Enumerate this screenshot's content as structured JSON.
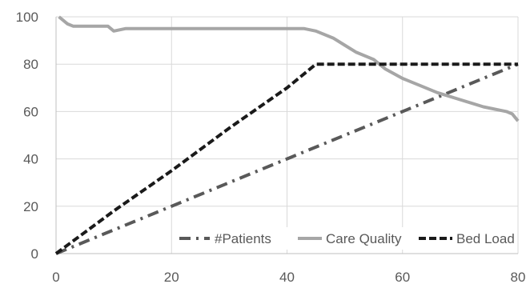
{
  "chart_data": {
    "type": "line",
    "title": "",
    "xlabel": "",
    "ylabel": "",
    "xlim": [
      0,
      80
    ],
    "ylim": [
      0,
      100
    ],
    "x_ticks": [
      0,
      20,
      40,
      60,
      80
    ],
    "y_ticks": [
      0,
      20,
      40,
      60,
      80,
      100
    ],
    "grid": "horizontal and vertical",
    "legend_position": "bottom-right, inside plot",
    "series": [
      {
        "name": "#Patients",
        "style": "dash-dot",
        "color": "#595959",
        "x": [
          0,
          10,
          20,
          30,
          40,
          50,
          60,
          70,
          80
        ],
        "y": [
          0,
          10,
          20,
          30,
          40,
          50,
          60,
          70,
          80
        ]
      },
      {
        "name": "Care Quality",
        "style": "solid",
        "color": "#a6a6a6",
        "x": [
          0.5,
          2,
          3,
          5,
          9,
          10,
          12,
          20,
          30,
          40,
          43,
          45,
          48,
          50,
          52,
          55,
          57,
          60,
          63,
          66,
          70,
          74,
          78,
          79,
          80
        ],
        "y": [
          100,
          97,
          96,
          96,
          96,
          94,
          95,
          95,
          95,
          95,
          95,
          94,
          91,
          88,
          85,
          82,
          78,
          74,
          71,
          68,
          65,
          62,
          60,
          59,
          56
        ]
      },
      {
        "name": "Bed Load",
        "style": "dashed",
        "color": "#1a1a1a",
        "x": [
          0,
          10,
          20,
          30,
          40,
          45,
          50,
          60,
          70,
          80
        ],
        "y": [
          0,
          18,
          35,
          53,
          70,
          80,
          80,
          80,
          80,
          80
        ]
      }
    ]
  }
}
